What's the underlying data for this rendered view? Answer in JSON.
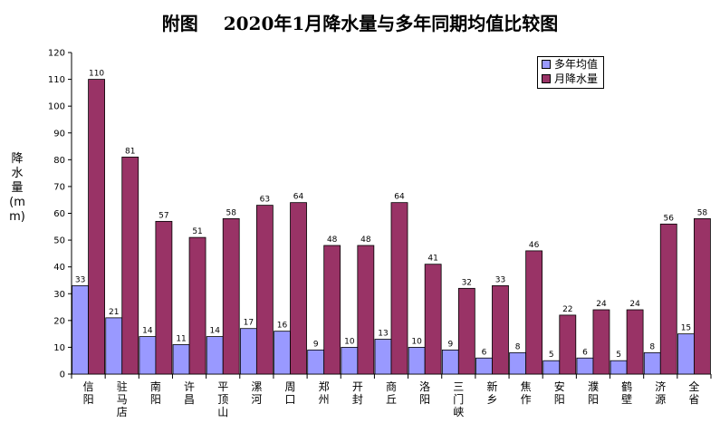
{
  "title_part1": "附图",
  "title_part2": "2020年1月降水量与多年同期均值比较图",
  "chart_data": {
    "type": "bar",
    "ylabel": "降水量(mm)",
    "ylim": [
      0,
      120
    ],
    "yticks": [
      0,
      10,
      20,
      30,
      40,
      50,
      60,
      70,
      80,
      90,
      100,
      110,
      120
    ],
    "grid": false,
    "legend_position": "top-right",
    "categories": [
      "信阳",
      "驻马店",
      "南阳",
      "许昌",
      "平顶山",
      "漯河",
      "周口",
      "郑州",
      "开封",
      "商丘",
      "洛阳",
      "三门峡",
      "新乡",
      "焦作",
      "安阳",
      "濮阳",
      "鹤壁",
      "济源",
      "全省"
    ],
    "series": [
      {
        "name": "多年均值",
        "color": "#9999ff",
        "values": [
          33,
          21,
          14,
          11,
          14,
          17,
          16,
          9,
          10,
          13,
          10,
          9,
          6,
          8,
          5,
          6,
          5,
          8,
          15
        ]
      },
      {
        "name": "月降水量",
        "color": "#993366",
        "values": [
          110,
          81,
          57,
          51,
          58,
          63,
          64,
          48,
          48,
          64,
          41,
          32,
          33,
          46,
          22,
          24,
          24,
          56,
          58
        ]
      }
    ]
  }
}
